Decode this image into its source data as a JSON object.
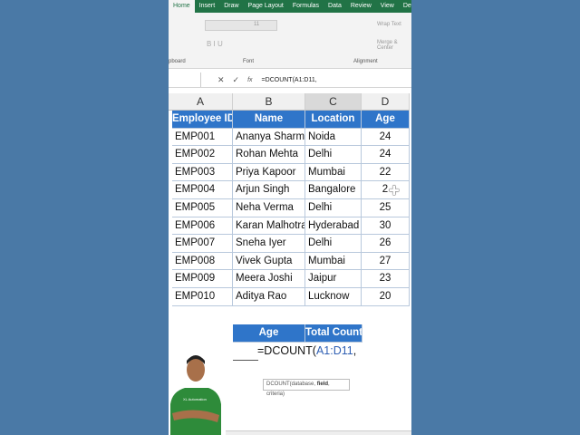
{
  "ribbon": {
    "tabs": [
      "Home",
      "Insert",
      "Draw",
      "Page Layout",
      "Formulas",
      "Data",
      "Review",
      "View",
      "Develo"
    ],
    "active_tab": "Home",
    "groups": {
      "clipboard": "pboard",
      "font": "Font",
      "alignment": "Alignment"
    },
    "font_size": "11",
    "wrap_text": "Wrap Text",
    "merge": "Merge & Center"
  },
  "formula_bar": {
    "formula": "=DCOUNT(A1:D11,",
    "cancel": "✕",
    "enter": "✓",
    "fx": "fx"
  },
  "columns": [
    "A",
    "B",
    "C",
    "D"
  ],
  "table": {
    "headers": [
      "Employee ID",
      "Name",
      "Location",
      "Age"
    ],
    "rows": [
      [
        "EMP001",
        "Ananya Sharma",
        "Noida",
        "24"
      ],
      [
        "EMP002",
        "Rohan Mehta",
        "Delhi",
        "24"
      ],
      [
        "EMP003",
        "Priya Kapoor",
        "Mumbai",
        "22"
      ],
      [
        "EMP004",
        "Arjun Singh",
        "Bangalore",
        "2"
      ],
      [
        "EMP005",
        "Neha Verma",
        "Delhi",
        "25"
      ],
      [
        "EMP006",
        "Karan Malhotra",
        "Hyderabad",
        "30"
      ],
      [
        "EMP007",
        "Sneha Iyer",
        "Delhi",
        "26"
      ],
      [
        "EMP008",
        "Vivek Gupta",
        "Mumbai",
        "27"
      ],
      [
        "EMP009",
        "Meera Joshi",
        "Jaipur",
        "23"
      ],
      [
        "EMP010",
        "Aditya Rao",
        "Lucknow",
        "20"
      ]
    ]
  },
  "criteria": {
    "headers": [
      "Age",
      "Total Count"
    ],
    "formula_prefix": "=DCOUNT(",
    "formula_ref": "A1:D11",
    "formula_suffix": ","
  },
  "tooltip": {
    "fn": "DCOUNT(database, ",
    "field": "field",
    ",rest": "",
    "rest": ", criteria)"
  },
  "presenter": {
    "shirt_text": "XL Automation"
  },
  "colors": {
    "background": "#4a79a6",
    "excel_green": "#217346",
    "header_blue": "#2f75c9",
    "ref_blue": "#2f5fb3"
  }
}
